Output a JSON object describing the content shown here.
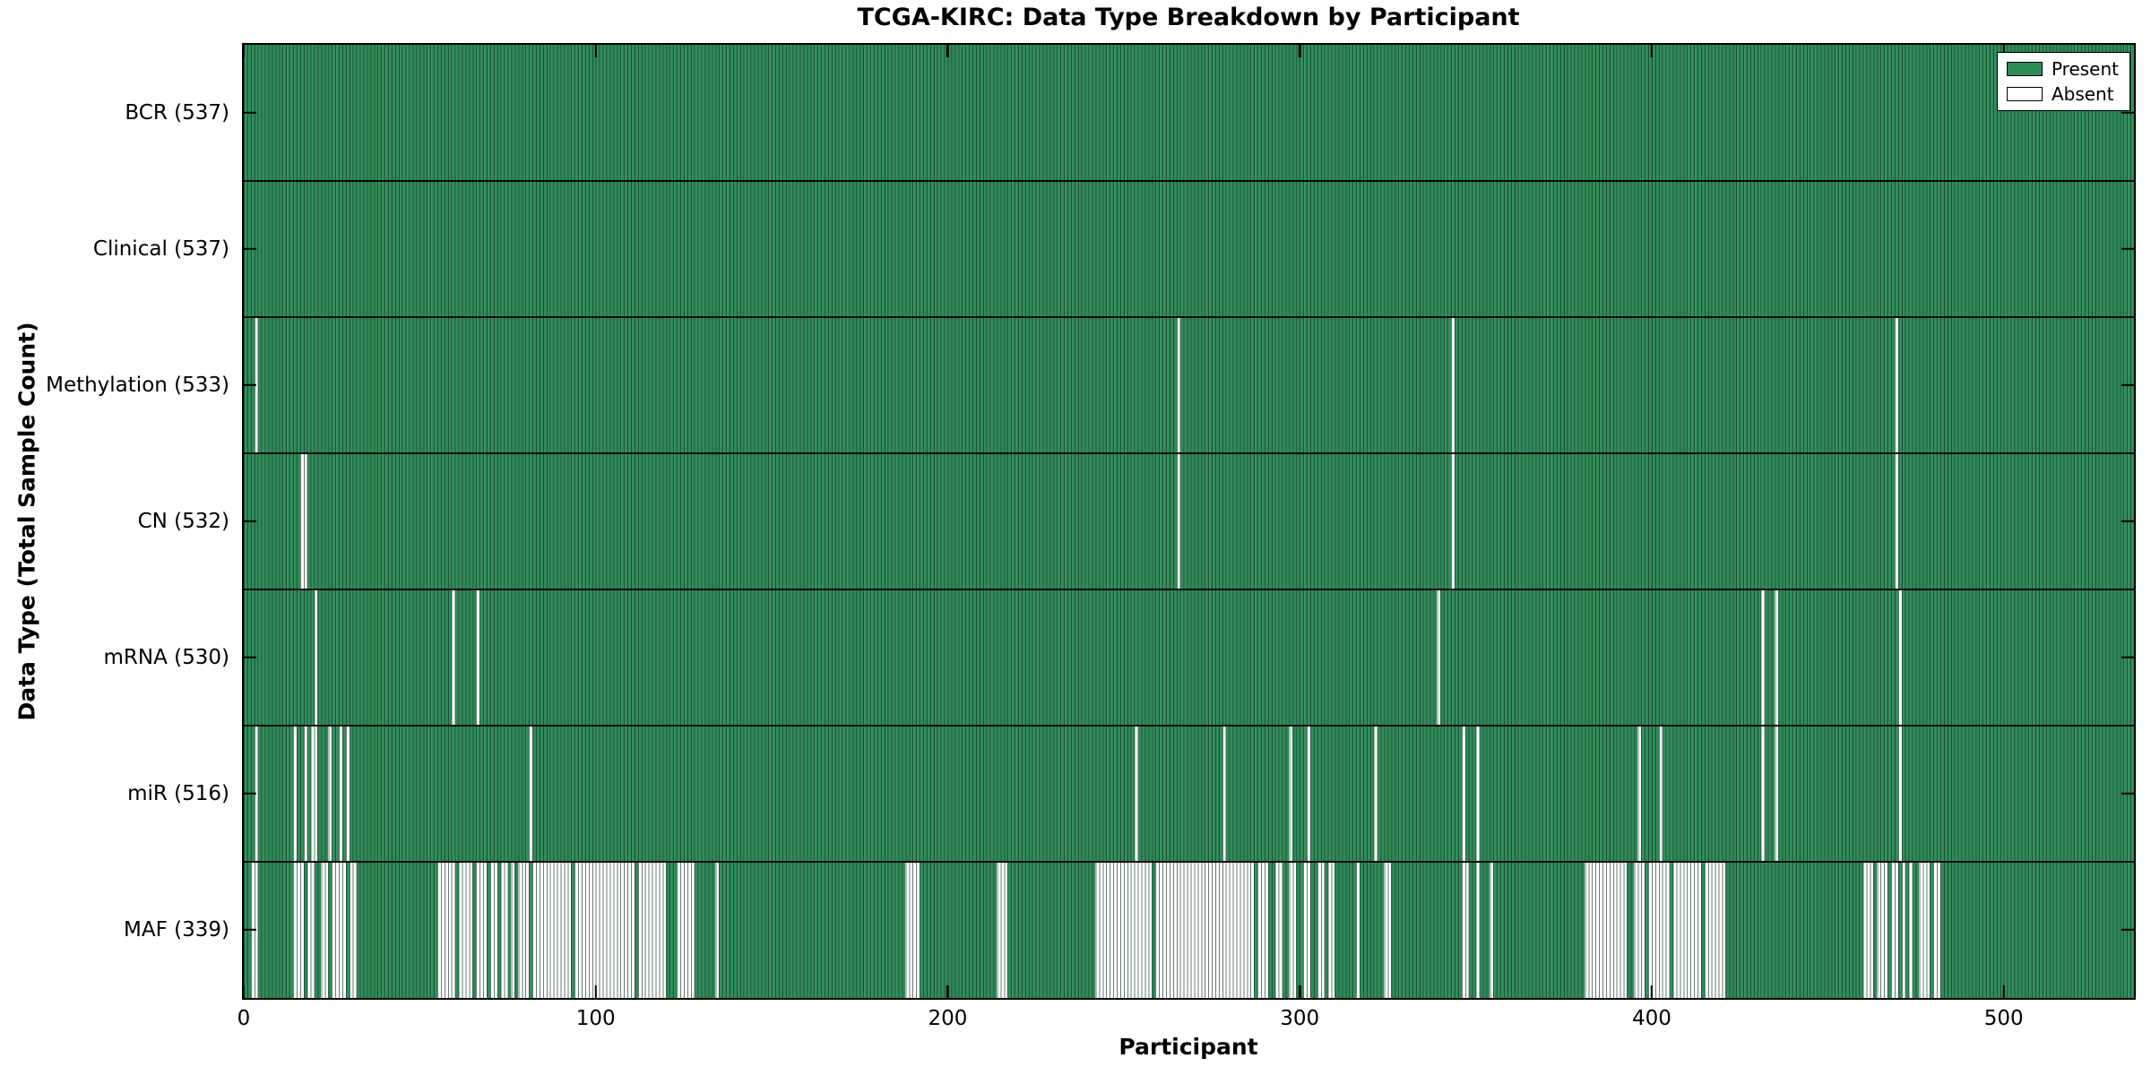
{
  "title": "TCGA-KIRC: Data Type Breakdown by Participant",
  "axes": {
    "xlabel": "Participant",
    "ylabel": "Data Type (Total Sample Count)"
  },
  "legend": {
    "present_label": "Present",
    "absent_label": "Absent"
  },
  "colors": {
    "present": "#2e8b57",
    "present_edge": "#14532d",
    "absent": "#ffffff",
    "absent_edge": "#aaaaaa",
    "spine": "#000000"
  },
  "chart_data": {
    "type": "heatmap",
    "title": "TCGA-KIRC: Data Type Breakdown by Participant",
    "xlabel": "Participant",
    "ylabel": "Data Type (Total Sample Count)",
    "x_ticks": [
      0,
      100,
      200,
      300,
      400,
      500
    ],
    "xlim": [
      0,
      537
    ],
    "n_participants": 537,
    "grid": false,
    "legend_position": "upper right",
    "legend_entries": [
      "Present",
      "Absent"
    ],
    "rows": [
      {
        "data_type": "BCR",
        "label": "BCR (537)",
        "present_count": 537,
        "absent_count": 0,
        "absent_ranges": []
      },
      {
        "data_type": "Clinical",
        "label": "Clinical (537)",
        "present_count": 537,
        "absent_count": 0,
        "absent_ranges": []
      },
      {
        "data_type": "Methylation",
        "label": "Methylation (533)",
        "present_count": 533,
        "absent_count": 4,
        "absent_ranges": [
          [
            3,
            3
          ],
          [
            265,
            265
          ],
          [
            343,
            343
          ],
          [
            469,
            469
          ]
        ]
      },
      {
        "data_type": "CN",
        "label": "CN (532)",
        "present_count": 532,
        "absent_count": 5,
        "absent_ranges": [
          [
            16,
            17
          ],
          [
            265,
            265
          ],
          [
            343,
            343
          ],
          [
            469,
            469
          ]
        ]
      },
      {
        "data_type": "mRNA",
        "label": "mRNA (530)",
        "present_count": 530,
        "absent_count": 7,
        "absent_ranges": [
          [
            20,
            20
          ],
          [
            59,
            59
          ],
          [
            66,
            66
          ],
          [
            339,
            339
          ],
          [
            431,
            431
          ],
          [
            435,
            435
          ],
          [
            470,
            470
          ]
        ]
      },
      {
        "data_type": "miR",
        "label": "miR (516)",
        "present_count": 516,
        "absent_count": 21,
        "absent_ranges": [
          [
            3,
            3
          ],
          [
            14,
            14
          ],
          [
            17,
            17
          ],
          [
            19,
            20
          ],
          [
            24,
            24
          ],
          [
            27,
            27
          ],
          [
            29,
            29
          ],
          [
            81,
            81
          ],
          [
            253,
            253
          ],
          [
            278,
            278
          ],
          [
            297,
            297
          ],
          [
            302,
            302
          ],
          [
            321,
            321
          ],
          [
            346,
            346
          ],
          [
            350,
            350
          ],
          [
            396,
            396
          ],
          [
            402,
            402
          ],
          [
            431,
            431
          ],
          [
            435,
            435
          ],
          [
            470,
            470
          ]
        ]
      },
      {
        "data_type": "MAF",
        "label": "MAF (339)",
        "present_count": 339,
        "absent_count": 198,
        "absent_ranges": [
          [
            2,
            3
          ],
          [
            14,
            16
          ],
          [
            18,
            19
          ],
          [
            22,
            23
          ],
          [
            25,
            28
          ],
          [
            30,
            31
          ],
          [
            55,
            59
          ],
          [
            61,
            64
          ],
          [
            66,
            68
          ],
          [
            70,
            71
          ],
          [
            73,
            74
          ],
          [
            76,
            76
          ],
          [
            78,
            80
          ],
          [
            82,
            92
          ],
          [
            94,
            110
          ],
          [
            112,
            119
          ],
          [
            123,
            127
          ],
          [
            134,
            134
          ],
          [
            188,
            191
          ],
          [
            214,
            216
          ],
          [
            242,
            257
          ],
          [
            259,
            286
          ],
          [
            288,
            290
          ],
          [
            293,
            294
          ],
          [
            297,
            298
          ],
          [
            301,
            302
          ],
          [
            305,
            306
          ],
          [
            308,
            309
          ],
          [
            316,
            316
          ],
          [
            324,
            325
          ],
          [
            346,
            347
          ],
          [
            350,
            350
          ],
          [
            354,
            354
          ],
          [
            381,
            392
          ],
          [
            395,
            397
          ],
          [
            399,
            404
          ],
          [
            406,
            413
          ],
          [
            415,
            420
          ],
          [
            460,
            462
          ],
          [
            464,
            466
          ],
          [
            468,
            469
          ],
          [
            471,
            471
          ],
          [
            473,
            473
          ],
          [
            476,
            478
          ],
          [
            480,
            481
          ]
        ]
      }
    ]
  }
}
